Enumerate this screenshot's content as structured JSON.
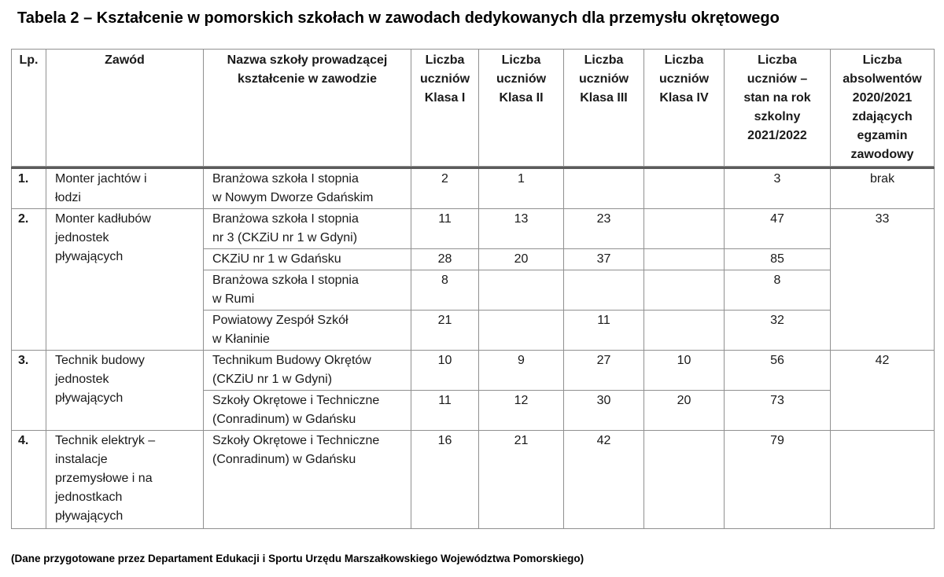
{
  "title": "Tabela 2 – Kształcenie w pomorskich szkołach w zawodach dedykowanych dla przemysłu okrętowego",
  "footer_note": "(Dane przygotowane przez Departament Edukacji i Sportu Urzędu Marszałkowskiego Województwa Pomorskiego)",
  "colors": {
    "grid": "#909090",
    "header_rule": "#5b5b5b",
    "text": "#1a1a1a"
  },
  "table": {
    "headers": [
      "Lp.",
      "Zawód",
      "Nazwa szkoły prowadzącej\nkształcenie w zawodzie",
      "Liczba\nuczniów\nKlasa I",
      "Liczba\nuczniów\nKlasa II",
      "Liczba\nuczniów\nKlasa III",
      "Liczba\nuczniów\nKlasa IV",
      "Liczba\nuczniów –\nstan na rok\nszkolny\n2021/2022",
      "Liczba\nabsolwentów\n2020/2021\nzdających\negzamin\nzawodowy"
    ],
    "groups": [
      {
        "lp": "1.",
        "zawod": "Monter jachtów i\nłodzi",
        "absolwenci": "brak",
        "schools": [
          {
            "name": "Branżowa szkoła I stopnia\nw Nowym Dworze Gdańskim",
            "k1": "2",
            "k2": "1",
            "k3": "",
            "k4": "",
            "stan": "3"
          }
        ]
      },
      {
        "lp": "2.",
        "zawod": "Monter kadłubów\njednostek\npływających",
        "absolwenci": "33",
        "schools": [
          {
            "name": "Branżowa szkoła I stopnia\nnr 3 (CKZiU nr 1 w Gdyni)",
            "k1": "11",
            "k2": "13",
            "k3": "23",
            "k4": "",
            "stan": "47"
          },
          {
            "name": "CKZiU nr 1 w Gdańsku",
            "k1": "28",
            "k2": "20",
            "k3": "37",
            "k4": "",
            "stan": "85"
          },
          {
            "name": "Branżowa szkoła I stopnia\nw Rumi",
            "k1": "8",
            "k2": "",
            "k3": "",
            "k4": "",
            "stan": "8"
          },
          {
            "name": "Powiatowy Zespół Szkół\nw Kłaninie",
            "k1": "21",
            "k2": "",
            "k3": "11",
            "k4": "",
            "stan": "32"
          }
        ]
      },
      {
        "lp": "3.",
        "zawod": "Technik budowy\njednostek\npływających",
        "absolwenci": "42",
        "schools": [
          {
            "name": "Technikum Budowy Okrętów\n(CKZiU nr 1 w Gdyni)",
            "k1": "10",
            "k2": "9",
            "k3": "27",
            "k4": "10",
            "stan": "56"
          },
          {
            "name": "Szkoły Okrętowe i Techniczne\n(Conradinum) w Gdańsku",
            "k1": "11",
            "k2": "12",
            "k3": "30",
            "k4": "20",
            "stan": "73"
          }
        ]
      },
      {
        "lp": "4.",
        "zawod": "Technik elektryk –\ninstalacje\nprzemysłowe i na\njednostkach\npływających",
        "absolwenci": "",
        "schools": [
          {
            "name": "Szkoły Okrętowe i Techniczne\n(Conradinum) w Gdańsku",
            "k1": "16",
            "k2": "21",
            "k3": "42",
            "k4": "",
            "stan": "79"
          }
        ]
      }
    ]
  }
}
